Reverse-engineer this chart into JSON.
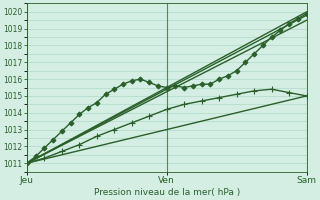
{
  "bg_color": "#d4eee4",
  "grid_color": "#b0d8c8",
  "line_color": "#2a5f2a",
  "xlabel": "Pression niveau de la mer( hPa )",
  "ylim": [
    1010.5,
    1020.5
  ],
  "yticks": [
    1011,
    1012,
    1013,
    1014,
    1015,
    1016,
    1017,
    1018,
    1019,
    1020
  ],
  "xtick_labels": [
    "Jeu",
    "Ven",
    "Sam"
  ],
  "xtick_positions": [
    0,
    48,
    96
  ],
  "xmax": 96,
  "series": [
    {
      "x": [
        0,
        3,
        6,
        9,
        12,
        15,
        18,
        21,
        24,
        27,
        30,
        33,
        36,
        39,
        42,
        45,
        48,
        51,
        54,
        57,
        60,
        63,
        66,
        69,
        72,
        75,
        78,
        81,
        84,
        87,
        90,
        93,
        96
      ],
      "y": [
        1011.0,
        1011.4,
        1011.9,
        1012.4,
        1012.9,
        1013.4,
        1013.9,
        1014.3,
        1014.6,
        1015.1,
        1015.4,
        1015.7,
        1015.9,
        1016.0,
        1015.8,
        1015.6,
        1015.5,
        1015.6,
        1015.5,
        1015.6,
        1015.7,
        1015.7,
        1016.0,
        1016.2,
        1016.5,
        1017.0,
        1017.5,
        1018.0,
        1018.5,
        1018.9,
        1019.3,
        1019.6,
        1019.9
      ],
      "marker": "D",
      "markersize": 2.5,
      "linewidth": 1.0,
      "zorder": 5
    },
    {
      "x": [
        0,
        6,
        12,
        18,
        24,
        30,
        36,
        42,
        48,
        54,
        60,
        66,
        72,
        78,
        84,
        90,
        96
      ],
      "y": [
        1011.0,
        1011.3,
        1011.7,
        1012.1,
        1012.6,
        1013.0,
        1013.4,
        1013.8,
        1014.2,
        1014.5,
        1014.7,
        1014.9,
        1015.1,
        1015.3,
        1015.4,
        1015.2,
        1015.0
      ],
      "marker": "+",
      "markersize": 4,
      "linewidth": 1.0,
      "zorder": 5
    },
    {
      "x": [
        0,
        96
      ],
      "y": [
        1011.0,
        1020.0
      ],
      "marker": "None",
      "markersize": 0,
      "linewidth": 1.0,
      "zorder": 3
    },
    {
      "x": [
        0,
        96
      ],
      "y": [
        1011.0,
        1019.8
      ],
      "marker": "None",
      "markersize": 0,
      "linewidth": 1.0,
      "zorder": 3
    },
    {
      "x": [
        0,
        96
      ],
      "y": [
        1011.0,
        1019.5
      ],
      "marker": "None",
      "markersize": 0,
      "linewidth": 1.0,
      "zorder": 3
    },
    {
      "x": [
        0,
        96
      ],
      "y": [
        1011.0,
        1015.0
      ],
      "marker": "None",
      "markersize": 0,
      "linewidth": 1.0,
      "zorder": 3
    }
  ]
}
